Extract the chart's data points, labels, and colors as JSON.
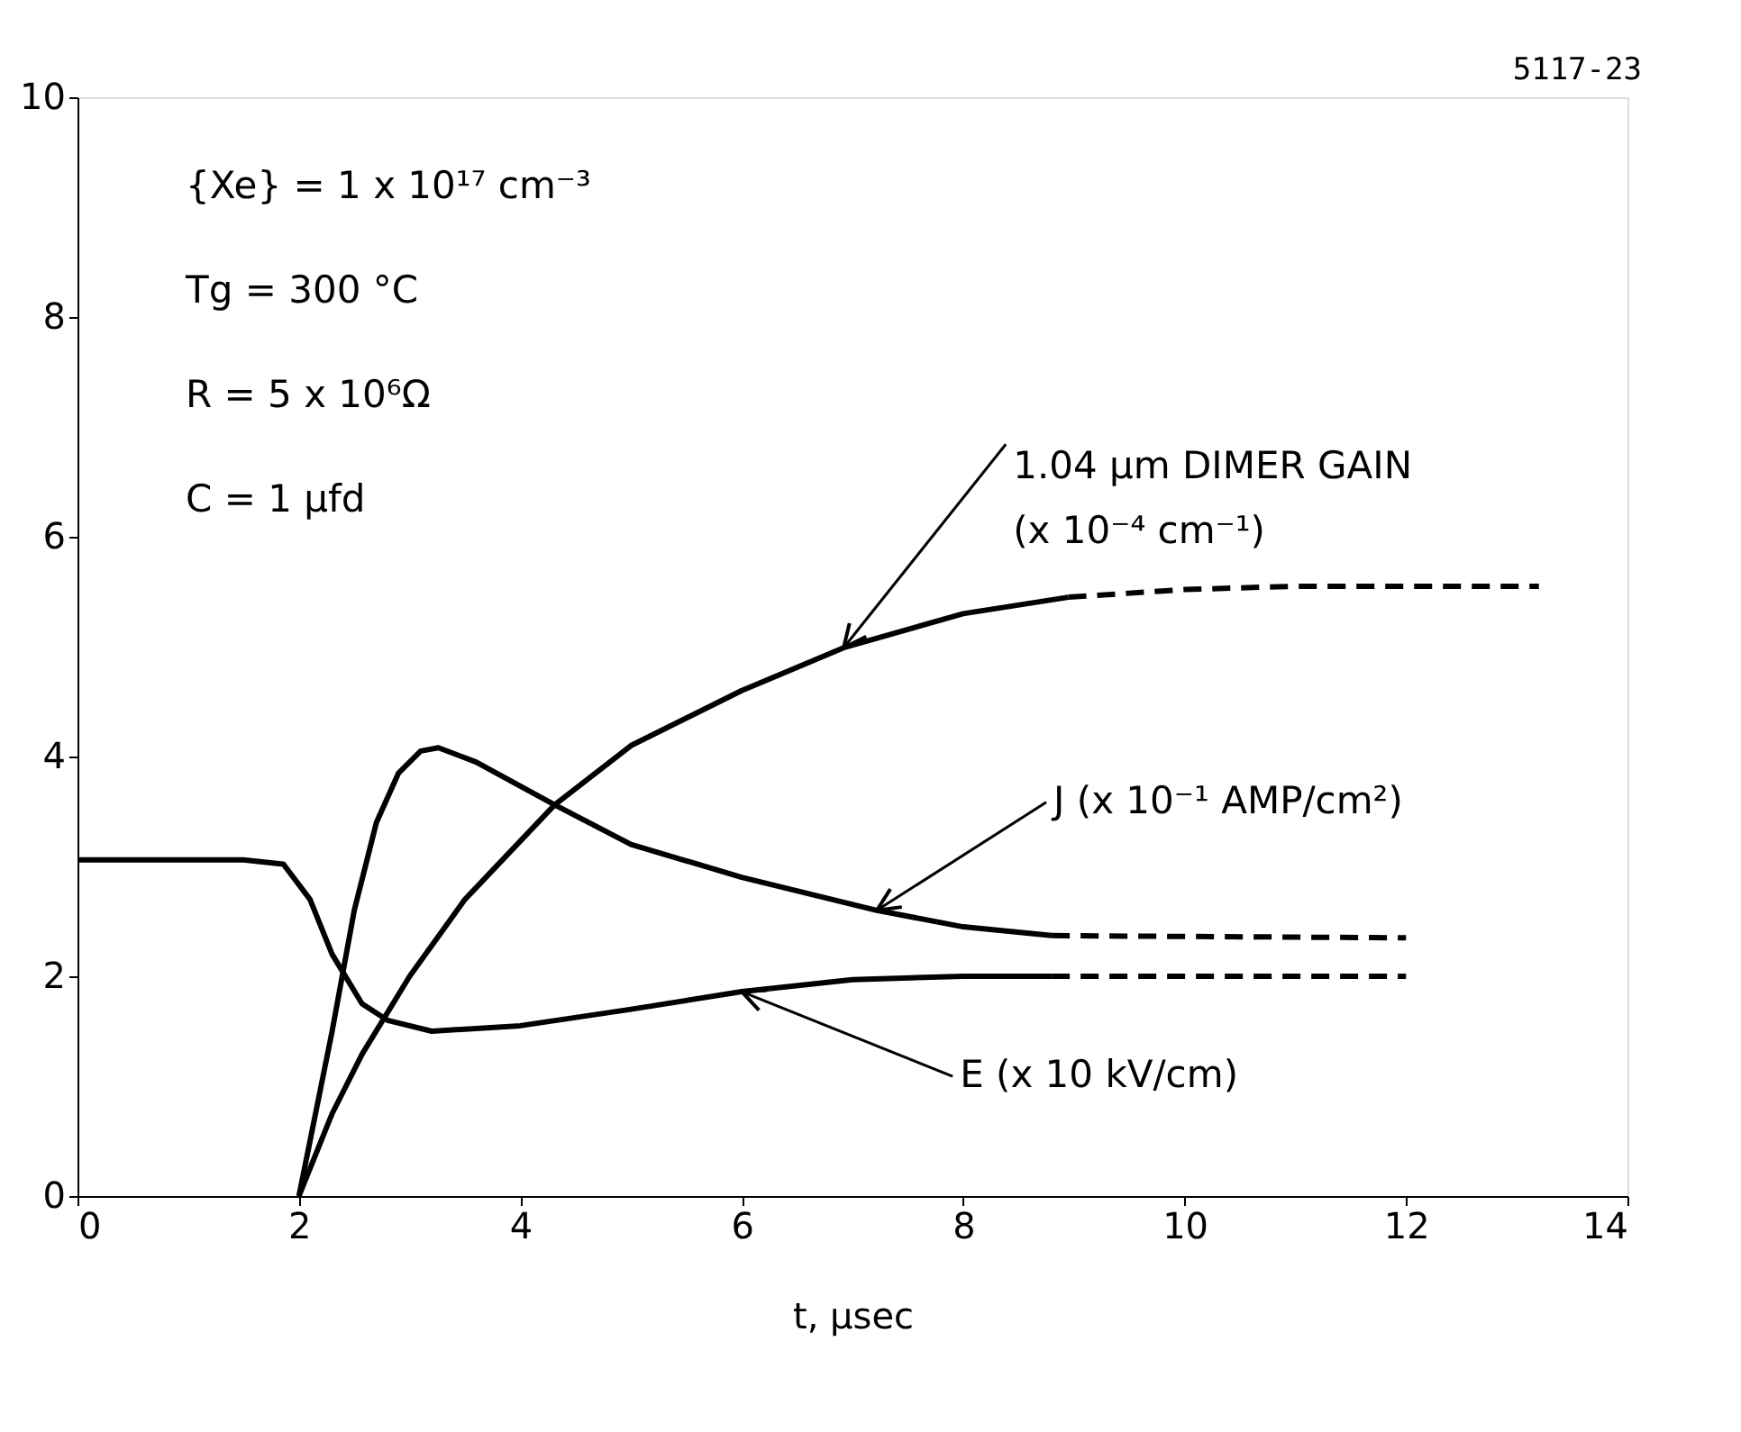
{
  "chart_data": {
    "type": "line",
    "xlabel": "t, μsec",
    "xlim": [
      0,
      14
    ],
    "ylim": [
      0,
      10
    ],
    "xticks": [
      0,
      2,
      4,
      6,
      8,
      10,
      12,
      14
    ],
    "yticks": [
      0,
      2,
      4,
      6,
      8,
      10
    ],
    "grid": false,
    "marker": "none",
    "series": [
      {
        "color": "#000000",
        "line_style": "solid",
        "x": [
          2,
          2.3,
          2.57,
          3,
          3.5,
          4.31,
          5,
          6,
          6.92,
          8,
          8.95
        ],
        "values": [
          0,
          0.75,
          1.29,
          2.0,
          2.7,
          3.56,
          4.1,
          4.6,
          4.99,
          5.3,
          5.45
        ]
      },
      {
        "color": "#000000",
        "line_style": "dashed",
        "x": [
          8.95,
          10,
          11,
          13.2
        ],
        "values": [
          5.45,
          5.52,
          5.55,
          5.55
        ]
      },
      {
        "color": "#000000",
        "line_style": "solid",
        "x": [
          2,
          2.3,
          2.5,
          2.7,
          2.9,
          3.1,
          3.26,
          3.6,
          4.31,
          5,
          6,
          7.22,
          8,
          8.8
        ],
        "values": [
          0,
          1.5,
          2.6,
          3.4,
          3.85,
          4.05,
          4.08,
          3.95,
          3.56,
          3.2,
          2.9,
          2.6,
          2.45,
          2.37
        ]
      },
      {
        "color": "#000000",
        "line_style": "dashed",
        "x": [
          8.8,
          12
        ],
        "values": [
          2.37,
          2.35
        ]
      },
      {
        "color": "#000000",
        "line_style": "solid",
        "x": [
          0,
          1.5,
          1.86,
          2.1,
          2.3,
          2.57,
          2.8,
          3.2,
          4,
          5,
          6,
          7,
          8,
          8.8
        ],
        "values": [
          3.06,
          3.06,
          3.02,
          2.7,
          2.2,
          1.75,
          1.6,
          1.5,
          1.55,
          1.7,
          1.86,
          1.97,
          2.0,
          2.0
        ]
      },
      {
        "color": "#000000",
        "line_style": "dashed",
        "x": [
          8.8,
          12
        ],
        "values": [
          2.0,
          2.0
        ]
      }
    ],
    "annotations": [
      "5117-23",
      "{Xe} = 1 x 10¹⁷ cm⁻³",
      "Tg = 300 °C",
      "R = 5 x 10⁶Ω",
      "C = 1 μfd",
      {
        "text": "1.04 μm DIMER GAIN\n(x 10⁻⁴ cm⁻¹)",
        "x": 6.92,
        "y": 4.99
      },
      {
        "text": "J (x 10⁻¹ AMP/cm²)",
        "x": 7.22,
        "y": 2.6
      },
      {
        "text": "E (x 10 kV/cm)",
        "x": 6.0,
        "y": 1.86
      }
    ]
  }
}
